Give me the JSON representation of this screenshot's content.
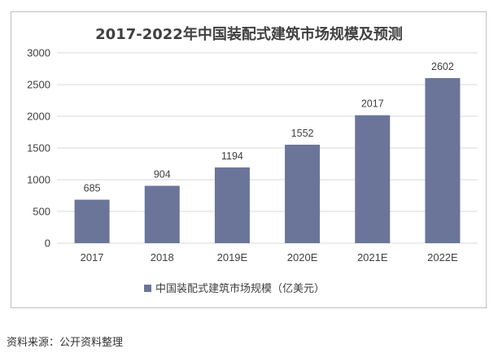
{
  "chart_data": {
    "type": "bar",
    "title": "2017-2022年中国装配式建筑市场规模及预测",
    "categories": [
      "2017",
      "2018",
      "2019E",
      "2020E",
      "2021E",
      "2022E"
    ],
    "series": [
      {
        "name": "中国装配式建筑市场规模（亿美元）",
        "values": [
          685,
          904,
          1194,
          1552,
          2017,
          2602
        ],
        "data_labels": [
          "685",
          "904",
          "1194",
          "1552",
          "2017",
          "2602"
        ],
        "color": "#6b7599"
      }
    ],
    "y_ticks": [
      "0",
      "500",
      "1000",
      "1500",
      "2000",
      "2500",
      "3000"
    ],
    "ylim": [
      0,
      3000
    ],
    "xlabel": "",
    "ylabel": "",
    "grid": true,
    "grid_color": "#d9d9d9",
    "legend_position": "bottom"
  },
  "source_note": "资料来源：公开资料整理"
}
